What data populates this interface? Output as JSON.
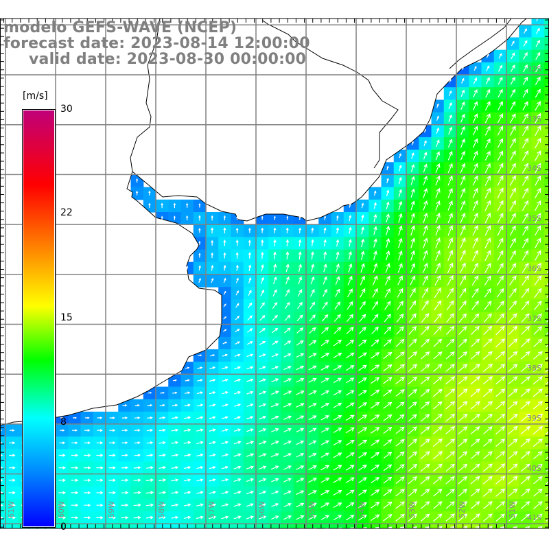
{
  "header": {
    "model": "modelo GEFS-WAVE (NCEP)",
    "forecast_date": "forecast date: 2023-08-14 12:00:00",
    "valid_date": "valid date: 2023-08-30 00:00:00"
  },
  "colorbar": {
    "units": "[m/s]",
    "labels": [
      "30",
      "22",
      "15",
      "8",
      "0"
    ],
    "min": 0,
    "max": 30,
    "colors": [
      "#0000ff",
      "#0090ff",
      "#00ffff",
      "#00ff00",
      "#ffff00",
      "#ff7a00",
      "#ff0000",
      "#c0007a"
    ]
  },
  "axes": {
    "lon_labels": [
      "61W",
      "60W",
      "59W",
      "58W",
      "57W",
      "56W",
      "55W",
      "54W",
      "53W",
      "52W",
      "51W"
    ],
    "lat_labels": [
      "32S",
      "33S",
      "34S",
      "35S",
      "36S",
      "37S",
      "38S",
      "39S",
      "40S",
      "41S"
    ]
  },
  "style": {
    "grid_color": "#808080",
    "land_color": "#ffffff",
    "coast_color": "#000000",
    "arrow_color": "#ffffff"
  }
}
